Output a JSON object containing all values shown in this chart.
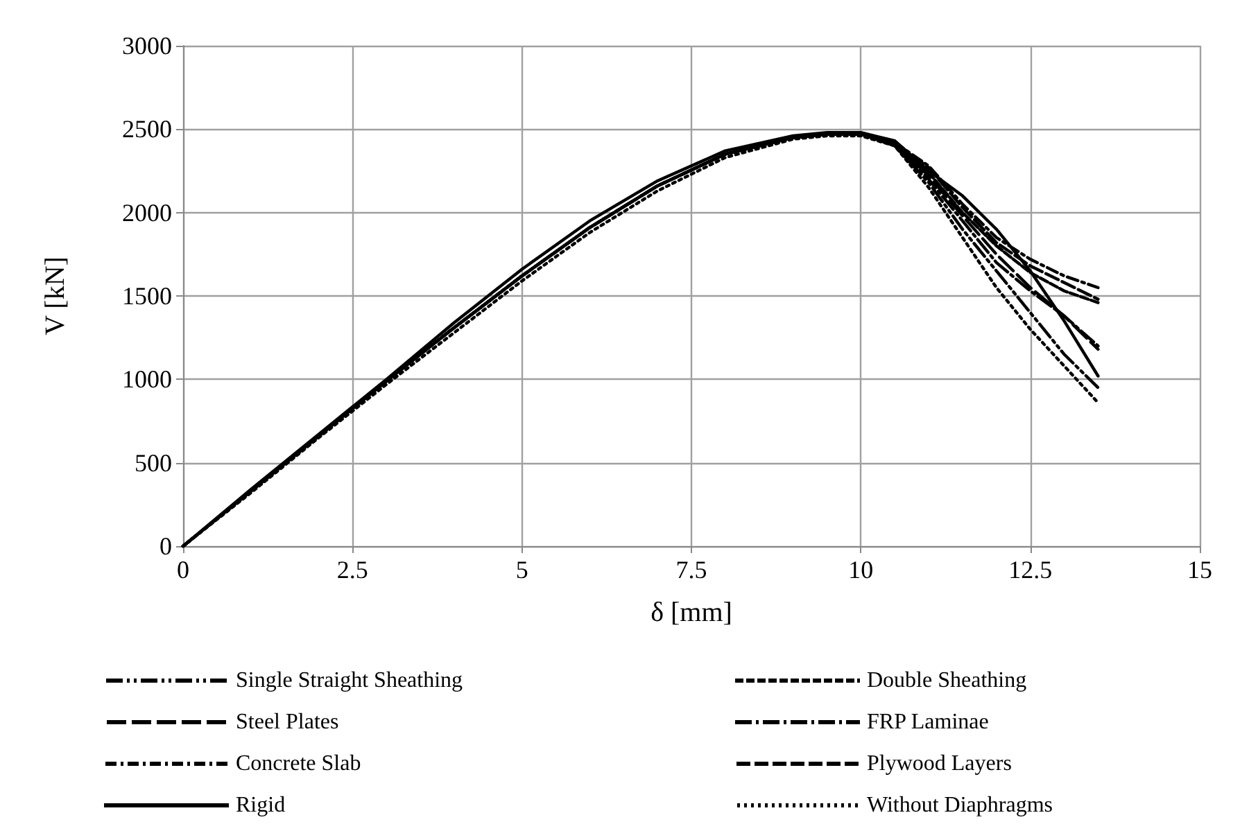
{
  "chart_data": {
    "type": "line",
    "xlabel": "δ [mm]",
    "ylabel": "V [kN]",
    "xlim": [
      0,
      15
    ],
    "xticks": [
      0,
      2.5,
      5,
      7.5,
      10,
      12.5,
      15
    ],
    "ylim": [
      0,
      3000
    ],
    "yticks": [
      0,
      500,
      1000,
      1500,
      2000,
      2500,
      3000
    ],
    "grid": true,
    "legend": "bottom",
    "marker": "none",
    "x": [
      0,
      1,
      2,
      3,
      4,
      5,
      6,
      7,
      8,
      9,
      9.5,
      10,
      10.5,
      11,
      11.5,
      12,
      12.5,
      13,
      13.5
    ],
    "series": [
      {
        "name": "Single Straight Sheathing",
        "color": "#000000",
        "line_style": "dashed",
        "values": [
          0,
          330,
          660,
          990,
          1310,
          1620,
          1910,
          2160,
          2350,
          2450,
          2470,
          2470,
          2400,
          2180,
          1900,
          1650,
          1400,
          1150,
          950
        ]
      },
      {
        "name": "Double Sheathing",
        "color": "#000000",
        "line_style": "dashed",
        "values": [
          0,
          330,
          660,
          990,
          1310,
          1620,
          1910,
          2160,
          2350,
          2450,
          2470,
          2470,
          2410,
          2240,
          2000,
          1800,
          1640,
          1530,
          1460
        ]
      },
      {
        "name": "Steel Plates",
        "color": "#000000",
        "line_style": "dashed",
        "values": [
          0,
          330,
          660,
          990,
          1310,
          1620,
          1910,
          2160,
          2350,
          2450,
          2470,
          2470,
          2410,
          2220,
          1980,
          1750,
          1550,
          1380,
          1180
        ]
      },
      {
        "name": "FRP Laminae",
        "color": "#000000",
        "line_style": "dashed",
        "values": [
          0,
          330,
          660,
          990,
          1310,
          1620,
          1910,
          2160,
          2350,
          2450,
          2470,
          2470,
          2410,
          2200,
          1950,
          1700,
          1530,
          1380,
          1200
        ]
      },
      {
        "name": "Concrete Slab",
        "color": "#000000",
        "line_style": "dashed",
        "values": [
          0,
          330,
          660,
          990,
          1310,
          1620,
          1910,
          2160,
          2350,
          2450,
          2470,
          2470,
          2420,
          2280,
          2050,
          1850,
          1720,
          1620,
          1550
        ]
      },
      {
        "name": "Plywood Layers",
        "color": "#000000",
        "line_style": "dashed",
        "values": [
          0,
          330,
          660,
          990,
          1310,
          1620,
          1910,
          2160,
          2350,
          2450,
          2470,
          2470,
          2420,
          2270,
          2030,
          1820,
          1680,
          1580,
          1480
        ]
      },
      {
        "name": "Rigid",
        "color": "#000000",
        "line_style": "solid",
        "values": [
          0,
          340,
          670,
          1000,
          1340,
          1660,
          1950,
          2190,
          2370,
          2460,
          2480,
          2480,
          2430,
          2250,
          2100,
          1900,
          1650,
          1350,
          1020
        ]
      },
      {
        "name": "Without Diaphragms",
        "color": "#000000",
        "line_style": "dotted",
        "values": [
          0,
          320,
          650,
          970,
          1280,
          1590,
          1880,
          2130,
          2330,
          2440,
          2460,
          2460,
          2400,
          2150,
          1850,
          1550,
          1300,
          1080,
          860
        ]
      }
    ]
  }
}
